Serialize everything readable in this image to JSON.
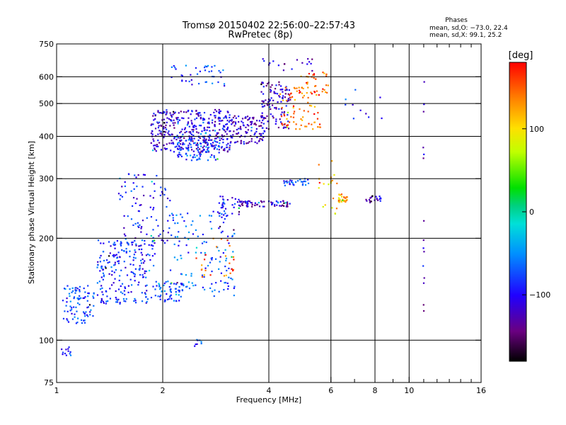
{
  "chart_data": {
    "type": "scatter",
    "title": "Tromsø 20150402 22:56:00–22:57:43",
    "subtitle": "RwPretec (8p)",
    "xlabel": "Frequency [MHz]",
    "ylabel": "Stationary phase Virtual Height [km]",
    "xscale": "log",
    "yscale": "log",
    "xlim": [
      1,
      16
    ],
    "ylim": [
      75,
      750
    ],
    "x_ticks": [
      1,
      2,
      4,
      6,
      8,
      10,
      16
    ],
    "x_minor_ticks": [
      7,
      9,
      11,
      12,
      13,
      14,
      15
    ],
    "y_ticks": [
      75,
      100,
      200,
      300,
      400,
      500,
      600,
      750
    ],
    "grid_x": [
      2,
      4,
      6,
      8,
      10
    ],
    "grid_y": [
      100,
      200,
      300,
      400,
      500,
      600
    ],
    "stats": {
      "header": "Phases",
      "line1": "mean, sd,O: −73.0, 22.4",
      "line2": "mean, sd,X: 99.1, 25.2"
    },
    "colorbar": {
      "label": "[deg]",
      "range": [
        -180,
        180
      ],
      "ticks": [
        100,
        0,
        -100
      ],
      "colormap": "rainbow"
    },
    "clusters": [
      {
        "x": [
          1.04,
          1.28
        ],
        "y": [
          112,
          145
        ],
        "phase": -80,
        "n": 90
      },
      {
        "x": [
          1.3,
          1.9
        ],
        "y": [
          128,
          200
        ],
        "phase": -85,
        "n": 220
      },
      {
        "x": [
          1.5,
          2.1
        ],
        "y": [
          190,
          310
        ],
        "phase": -95,
        "n": 90
      },
      {
        "x": [
          1.9,
          2.3
        ],
        "y": [
          130,
          150
        ],
        "phase": -75,
        "n": 60
      },
      {
        "x": [
          2.1,
          3.2
        ],
        "y": [
          135,
          240
        ],
        "phase": -70,
        "n": 130
      },
      {
        "x": [
          2.4,
          3.2
        ],
        "y": [
          150,
          200
        ],
        "phase": 140,
        "n": 25
      },
      {
        "x": [
          1.85,
          3.1
        ],
        "y": [
          360,
          480
        ],
        "phase": -110,
        "n": 380
      },
      {
        "x": [
          2.2,
          2.9
        ],
        "y": [
          340,
          400
        ],
        "phase": -75,
        "n": 90
      },
      {
        "x": [
          3.1,
          3.9
        ],
        "y": [
          380,
          460
        ],
        "phase": -115,
        "n": 110
      },
      {
        "x": [
          3.8,
          4.6
        ],
        "y": [
          420,
          580
        ],
        "phase": -115,
        "n": 110
      },
      {
        "x": [
          4.3,
          5.6
        ],
        "y": [
          420,
          560
        ],
        "phase": 140,
        "n": 70
      },
      {
        "x": [
          4.8,
          5.9
        ],
        "y": [
          520,
          620
        ],
        "phase": 150,
        "n": 40
      },
      {
        "x": [
          2.1,
          3.0
        ],
        "y": [
          560,
          650
        ],
        "phase": -80,
        "n": 40
      },
      {
        "x": [
          3.3,
          4.6
        ],
        "y": [
          248,
          258
        ],
        "phase": -120,
        "n": 70
      },
      {
        "x": [
          2.8,
          3.3
        ],
        "y": [
          232,
          268
        ],
        "phase": -95,
        "n": 35
      },
      {
        "x": [
          4.4,
          5.2
        ],
        "y": [
          285,
          300
        ],
        "phase": -85,
        "n": 30
      },
      {
        "x": [
          6.3,
          6.7
        ],
        "y": [
          255,
          270
        ],
        "phase": 120,
        "n": 30
      },
      {
        "x": [
          7.5,
          8.4
        ],
        "y": [
          255,
          268
        ],
        "phase": -115,
        "n": 20
      },
      {
        "x": [
          5.5,
          6.3
        ],
        "y": [
          230,
          340
        ],
        "phase": 110,
        "n": 20
      },
      {
        "x": [
          1.03,
          1.1
        ],
        "y": [
          90,
          96
        ],
        "phase": -85,
        "n": 12
      },
      {
        "x": [
          2.45,
          2.6
        ],
        "y": [
          96,
          101
        ],
        "phase": -80,
        "n": 8
      },
      {
        "x": [
          10.95,
          11.05
        ],
        "y": [
          120,
          620
        ],
        "phase": -115,
        "n": 16
      },
      {
        "x": [
          3.8,
          5.5
        ],
        "y": [
          620,
          680
        ],
        "phase": -120,
        "n": 18
      },
      {
        "x": [
          6.5,
          8.5
        ],
        "y": [
          450,
          560
        ],
        "phase": -100,
        "n": 10
      }
    ]
  }
}
